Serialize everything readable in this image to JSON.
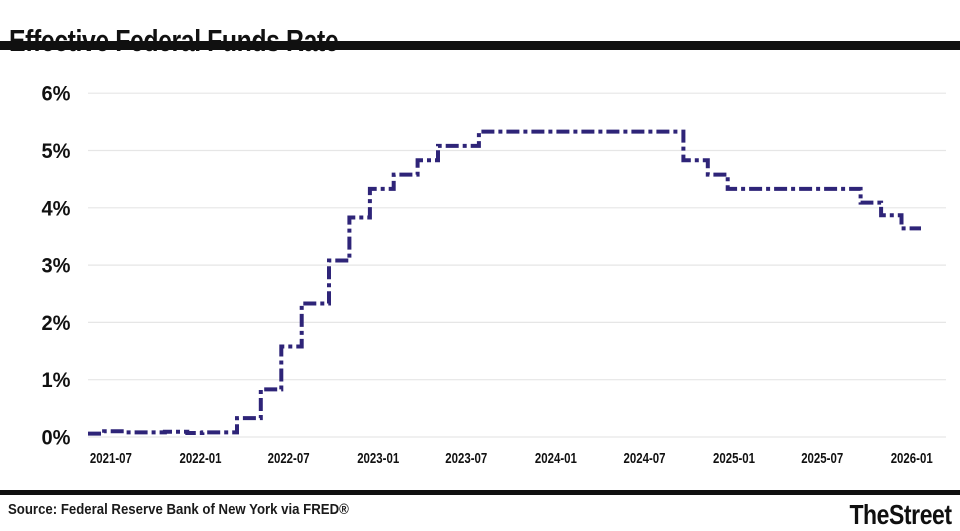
{
  "chart_data": {
    "type": "line",
    "subtype": "step",
    "title": "Effective Federal Funds Rate",
    "source": "Source: Federal Reserve Bank of New York via FRED®",
    "brand": "TheStreet",
    "line_color": "#2e2478",
    "grid_color": "#e6e6e6",
    "grid": true,
    "legend": "none",
    "line_style": "dash-dot",
    "ylim": [
      0,
      6
    ],
    "x_domain": [
      "2021-05-15",
      "2026-01-20"
    ],
    "y_ticks": [
      {
        "label": "0%",
        "value": 0
      },
      {
        "label": "1%",
        "value": 1
      },
      {
        "label": "2%",
        "value": 2
      },
      {
        "label": "3%",
        "value": 3
      },
      {
        "label": "4%",
        "value": 4
      },
      {
        "label": "5%",
        "value": 5
      },
      {
        "label": "6%",
        "value": 6
      }
    ],
    "x_ticks": [
      {
        "label": "2021-07",
        "date": "2021-07-01"
      },
      {
        "label": "2022-01",
        "date": "2022-01-01"
      },
      {
        "label": "2022-07",
        "date": "2022-07-01"
      },
      {
        "label": "2023-01",
        "date": "2023-01-01"
      },
      {
        "label": "2023-07",
        "date": "2023-07-01"
      },
      {
        "label": "2024-01",
        "date": "2024-01-01"
      },
      {
        "label": "2024-07",
        "date": "2024-07-01"
      },
      {
        "label": "2025-01",
        "date": "2025-01-01"
      },
      {
        "label": "2025-07",
        "date": "2025-07-01"
      },
      {
        "label": "2026-01",
        "date": "2026-01-01"
      }
    ],
    "series": {
      "name": "Effective Federal Funds Rate (%)",
      "points": [
        {
          "date": "2021-05-15",
          "value": 0.06
        },
        {
          "date": "2021-06-17",
          "value": 0.1
        },
        {
          "date": "2021-07-29",
          "value": 0.08
        },
        {
          "date": "2021-10-20",
          "value": 0.09
        },
        {
          "date": "2021-12-05",
          "value": 0.07
        },
        {
          "date": "2022-01-05",
          "value": 0.08
        },
        {
          "date": "2022-03-17",
          "value": 0.33
        },
        {
          "date": "2022-05-05",
          "value": 0.83
        },
        {
          "date": "2022-06-16",
          "value": 1.58
        },
        {
          "date": "2022-07-28",
          "value": 2.33
        },
        {
          "date": "2022-09-22",
          "value": 3.08
        },
        {
          "date": "2022-11-03",
          "value": 3.83
        },
        {
          "date": "2022-12-15",
          "value": 4.33
        },
        {
          "date": "2023-02-02",
          "value": 4.58
        },
        {
          "date": "2023-03-23",
          "value": 4.83
        },
        {
          "date": "2023-05-04",
          "value": 5.08
        },
        {
          "date": "2023-07-27",
          "value": 5.33
        },
        {
          "date": "2024-09-19",
          "value": 4.83
        },
        {
          "date": "2024-11-08",
          "value": 4.58
        },
        {
          "date": "2024-12-19",
          "value": 4.33
        },
        {
          "date": "2025-09-18",
          "value": 4.09
        },
        {
          "date": "2025-10-30",
          "value": 3.87
        },
        {
          "date": "2025-12-11",
          "value": 3.64
        },
        {
          "date": "2026-01-20",
          "value": 3.64
        }
      ]
    }
  }
}
